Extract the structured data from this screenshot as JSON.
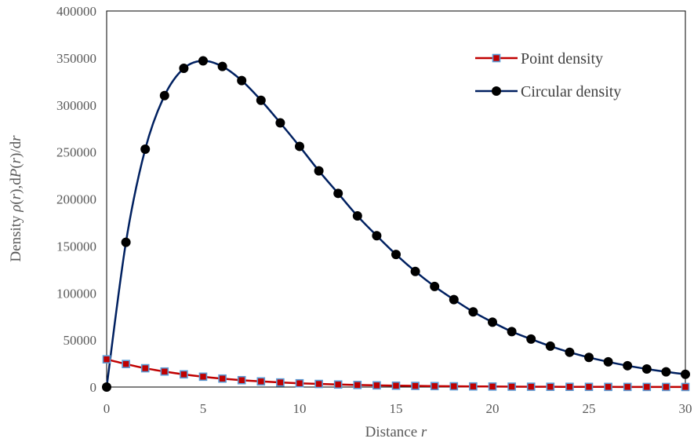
{
  "chart_data": {
    "type": "line",
    "xlabel": {
      "prefix": "Distance ",
      "var": "r"
    },
    "ylabel": {
      "parts": [
        {
          "text": "Density ",
          "italic": false
        },
        {
          "text": "ρ",
          "italic": true
        },
        {
          "text": "(",
          "italic": false
        },
        {
          "text": "r",
          "italic": true
        },
        {
          "text": "),d",
          "italic": false
        },
        {
          "text": "P",
          "italic": true
        },
        {
          "text": "(",
          "italic": false
        },
        {
          "text": "r",
          "italic": true
        },
        {
          "text": ")/d",
          "italic": false
        },
        {
          "text": "r",
          "italic": true
        }
      ]
    },
    "xlim": [
      0,
      30
    ],
    "ylim": [
      0,
      400000
    ],
    "xticks": [
      0,
      5,
      10,
      15,
      20,
      25,
      30
    ],
    "yticks": [
      0,
      50000,
      100000,
      150000,
      200000,
      250000,
      300000,
      350000,
      400000
    ],
    "grid": false,
    "legend_position": "top-right",
    "x": [
      0,
      1,
      2,
      3,
      4,
      5,
      6,
      7,
      8,
      9,
      10,
      11,
      12,
      13,
      14,
      15,
      16,
      17,
      18,
      19,
      20,
      21,
      22,
      23,
      24,
      25,
      26,
      27,
      28,
      29,
      30
    ],
    "series": [
      {
        "name": "Point density",
        "line_color": "#c00000",
        "marker": "square",
        "marker_fill": "#c00000",
        "marker_stroke": "#5b9bd5",
        "values": [
          29500,
          24500,
          20000,
          16500,
          13500,
          11000,
          9000,
          7300,
          6000,
          4900,
          4000,
          3300,
          2700,
          2200,
          1800,
          1450,
          1200,
          1000,
          800,
          650,
          540,
          440,
          360,
          290,
          240,
          200,
          160,
          130,
          110,
          90,
          70
        ]
      },
      {
        "name": "Circular density",
        "line_color": "#002060",
        "marker": "circle",
        "marker_fill": "#000000",
        "marker_stroke": "#000000",
        "values": [
          0,
          154000,
          253000,
          310000,
          339000,
          347000,
          341000,
          326000,
          305000,
          281000,
          256000,
          230000,
          206000,
          182000,
          161000,
          141000,
          123000,
          107000,
          93000,
          80000,
          69000,
          59000,
          51000,
          43500,
          37000,
          31500,
          26800,
          22700,
          19200,
          16200,
          13600
        ]
      }
    ]
  }
}
